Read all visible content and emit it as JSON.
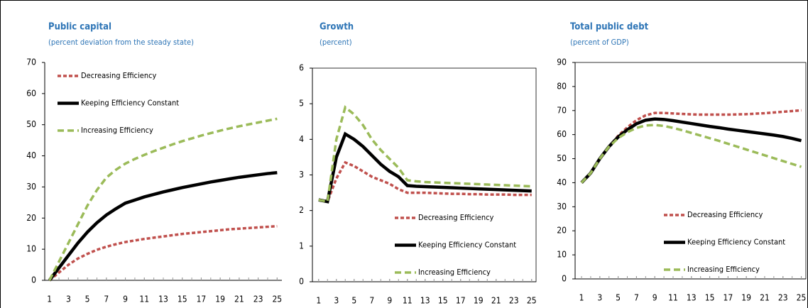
{
  "chart_data": [
    {
      "type": "line",
      "title": "Public capital",
      "subtitle": "(percent deviation from the steady state)",
      "x": [
        1,
        2,
        3,
        4,
        5,
        6,
        7,
        8,
        9,
        10,
        11,
        12,
        13,
        14,
        15,
        16,
        17,
        18,
        19,
        20,
        21,
        22,
        23,
        24,
        25
      ],
      "xlim": [
        0.5,
        25.5
      ],
      "xticks": [
        1,
        3,
        5,
        7,
        9,
        11,
        13,
        15,
        17,
        19,
        21,
        23,
        25
      ],
      "ylim": [
        0,
        70
      ],
      "yticks": [
        0,
        10,
        20,
        30,
        40,
        50,
        60,
        70
      ],
      "legend": "upper left",
      "frame": false,
      "series": [
        {
          "name": "Decreasing Efficiency",
          "color": "#c0504d",
          "dash": "dotted",
          "values": [
            0,
            2.5,
            5,
            7,
            8.5,
            9.8,
            10.8,
            11.6,
            12.3,
            12.8,
            13.3,
            13.7,
            14.1,
            14.5,
            14.9,
            15.2,
            15.5,
            15.8,
            16.1,
            16.4,
            16.6,
            16.8,
            17,
            17.2,
            17.4
          ]
        },
        {
          "name": "Keeping Efficiency Constant",
          "color": "#000000",
          "dash": "solid",
          "values": [
            0,
            4,
            8,
            12,
            15.5,
            18.5,
            21,
            23,
            24.8,
            25.8,
            26.8,
            27.6,
            28.4,
            29.1,
            29.8,
            30.4,
            31,
            31.6,
            32.1,
            32.6,
            33.1,
            33.5,
            33.9,
            34.3,
            34.6
          ]
        },
        {
          "name": "Increasing Efficiency",
          "color": "#9bbb59",
          "dash": "dashed",
          "values": [
            0,
            6,
            12,
            18,
            24,
            29,
            33,
            35.5,
            37.5,
            39,
            40.3,
            41.5,
            42.6,
            43.7,
            44.7,
            45.6,
            46.5,
            47.3,
            48.1,
            48.8,
            49.5,
            50.1,
            50.7,
            51.3,
            51.9
          ]
        }
      ]
    },
    {
      "type": "line",
      "title": "Growth",
      "subtitle": "(percent)",
      "x": [
        1,
        2,
        3,
        4,
        5,
        6,
        7,
        8,
        9,
        10,
        11,
        12,
        13,
        14,
        15,
        16,
        17,
        18,
        19,
        20,
        21,
        22,
        23,
        24,
        25
      ],
      "xlim": [
        0.3,
        25.5
      ],
      "xticks": [
        1,
        3,
        5,
        7,
        9,
        11,
        13,
        15,
        17,
        19,
        21,
        23,
        25
      ],
      "ylim": [
        0,
        6
      ],
      "yticks": [
        0,
        1,
        2,
        3,
        4,
        5,
        6
      ],
      "legend": "lower center",
      "frame": true,
      "series": [
        {
          "name": "Decreasing Efficiency",
          "color": "#c0504d",
          "dash": "dotted",
          "values": [
            2.3,
            2.25,
            2.9,
            3.35,
            3.25,
            3.1,
            2.95,
            2.85,
            2.75,
            2.6,
            2.5,
            2.5,
            2.5,
            2.49,
            2.48,
            2.47,
            2.47,
            2.46,
            2.46,
            2.45,
            2.45,
            2.45,
            2.44,
            2.44,
            2.44
          ]
        },
        {
          "name": "Keeping Efficiency Constant",
          "color": "#000000",
          "dash": "solid",
          "values": [
            2.3,
            2.25,
            3.5,
            4.15,
            4,
            3.8,
            3.55,
            3.3,
            3.1,
            2.95,
            2.7,
            2.68,
            2.67,
            2.66,
            2.65,
            2.64,
            2.63,
            2.62,
            2.61,
            2.6,
            2.59,
            2.58,
            2.57,
            2.56,
            2.55
          ]
        },
        {
          "name": "Increasing Efficiency",
          "color": "#9bbb59",
          "dash": "dashed",
          "values": [
            2.3,
            2.25,
            4,
            4.9,
            4.7,
            4.4,
            4,
            3.7,
            3.45,
            3.2,
            2.85,
            2.82,
            2.8,
            2.79,
            2.78,
            2.77,
            2.76,
            2.75,
            2.74,
            2.73,
            2.72,
            2.71,
            2.7,
            2.69,
            2.68
          ]
        }
      ]
    },
    {
      "type": "line",
      "title": "Total public debt",
      "subtitle": "(percent of GDP)",
      "x": [
        1,
        2,
        3,
        4,
        5,
        6,
        7,
        8,
        9,
        10,
        11,
        12,
        13,
        14,
        15,
        16,
        17,
        18,
        19,
        20,
        21,
        22,
        23,
        24,
        25
      ],
      "xlim": [
        0.3,
        25.5
      ],
      "xticks": [
        1,
        3,
        5,
        7,
        9,
        11,
        13,
        15,
        17,
        19,
        21,
        23,
        25
      ],
      "ylim": [
        0,
        90
      ],
      "yticks": [
        0,
        10,
        20,
        30,
        40,
        50,
        60,
        70,
        80,
        90
      ],
      "legend": "lower right",
      "frame": true,
      "series": [
        {
          "name": "Decreasing Efficiency",
          "color": "#c0504d",
          "dash": "dotted",
          "values": [
            40,
            44,
            50,
            55,
            59.5,
            63,
            66,
            68,
            69,
            69,
            68.8,
            68.6,
            68.4,
            68.3,
            68.3,
            68.3,
            68.3,
            68.4,
            68.5,
            68.7,
            68.9,
            69.2,
            69.5,
            69.8,
            70.1
          ]
        },
        {
          "name": "Keeping Efficiency Constant",
          "color": "#000000",
          "dash": "solid",
          "values": [
            40,
            44,
            50,
            55,
            59,
            62,
            64.5,
            66,
            66.5,
            66.3,
            65.8,
            65.2,
            64.6,
            64,
            63.4,
            62.9,
            62.3,
            61.8,
            61.3,
            60.8,
            60.3,
            59.8,
            59.2,
            58.4,
            57.5
          ]
        },
        {
          "name": "Increasing Efficiency",
          "color": "#9bbb59",
          "dash": "dashed",
          "values": [
            40,
            44,
            50,
            55,
            58.5,
            61,
            62.8,
            63.8,
            64,
            63.6,
            62.8,
            61.8,
            60.7,
            59.6,
            58.5,
            57.4,
            56.2,
            55,
            53.8,
            52.6,
            51.4,
            50.2,
            49,
            47.8,
            46.6
          ]
        }
      ]
    }
  ]
}
